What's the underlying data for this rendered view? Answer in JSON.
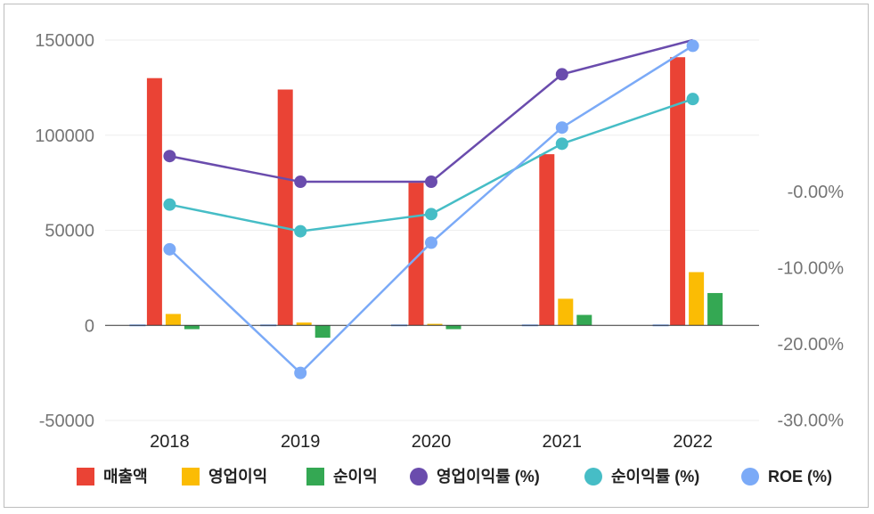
{
  "chart_data": {
    "type": "bar",
    "categories": [
      "2018",
      "2019",
      "2020",
      "2021",
      "2022"
    ],
    "y_left": {
      "ticks": [
        150000,
        100000,
        50000,
        0,
        -50000
      ],
      "ylim": [
        -50000,
        150000
      ]
    },
    "y_right": {
      "ticks": [
        "-0.00%",
        "-10.00%",
        "-20.00%",
        "-30.00%"
      ],
      "values": [
        0,
        -10,
        -20,
        -30
      ]
    },
    "bar_series": [
      {
        "name": "매출액",
        "color": "#ea4335",
        "values": [
          130000,
          124000,
          75000,
          90000,
          141000
        ]
      },
      {
        "name": "영업이익",
        "color": "#fbbc04",
        "values": [
          6000,
          1500,
          800,
          14000,
          28000
        ]
      },
      {
        "name": "순이익",
        "color": "#34a853",
        "values": [
          -2000,
          -6500,
          -2000,
          5500,
          17000
        ]
      }
    ],
    "line_series": [
      {
        "name": "영업이익률 (%)",
        "color": "#6a4cad",
        "values": [
          89000,
          75500,
          75500,
          132000,
          150000
        ]
      },
      {
        "name": "순이익률 (%)",
        "color": "#46bdc6",
        "values": [
          63500,
          49500,
          58500,
          95500,
          119000
        ]
      },
      {
        "name": "ROE (%)",
        "color": "#7baaf7",
        "values": [
          40000,
          -25000,
          43500,
          104000,
          147000
        ]
      }
    ],
    "grid": true,
    "legend_position": "bottom"
  }
}
